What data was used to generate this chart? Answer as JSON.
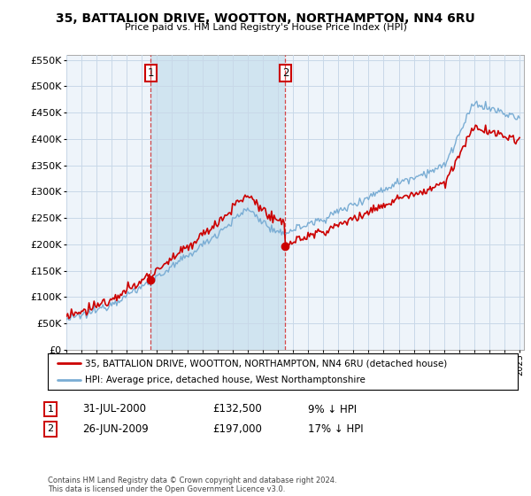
{
  "title": "35, BATTALION DRIVE, WOOTTON, NORTHAMPTON, NN4 6RU",
  "subtitle": "Price paid vs. HM Land Registry's House Price Index (HPI)",
  "legend_line1": "35, BATTALION DRIVE, WOOTTON, NORTHAMPTON, NN4 6RU (detached house)",
  "legend_line2": "HPI: Average price, detached house, West Northamptonshire",
  "footer": "Contains HM Land Registry data © Crown copyright and database right 2024.\nThis data is licensed under the Open Government Licence v3.0.",
  "annotation1_label": "1",
  "annotation1_date": "31-JUL-2000",
  "annotation1_price": "£132,500",
  "annotation1_hpi": "9% ↓ HPI",
  "annotation2_label": "2",
  "annotation2_date": "26-JUN-2009",
  "annotation2_price": "£197,000",
  "annotation2_hpi": "17% ↓ HPI",
  "hpi_color": "#7aadd4",
  "price_color": "#cc0000",
  "annotation_color": "#cc0000",
  "bg_color": "#ffffff",
  "plot_bg_color": "#eef4fa",
  "shade_color": "#d0e4f0",
  "grid_color": "#c8d8e8",
  "ylim_min": 0,
  "ylim_max": 560000,
  "purchase_year1": 2000.583,
  "purchase_year2": 2009.493,
  "price1": 132500,
  "price2": 197000
}
